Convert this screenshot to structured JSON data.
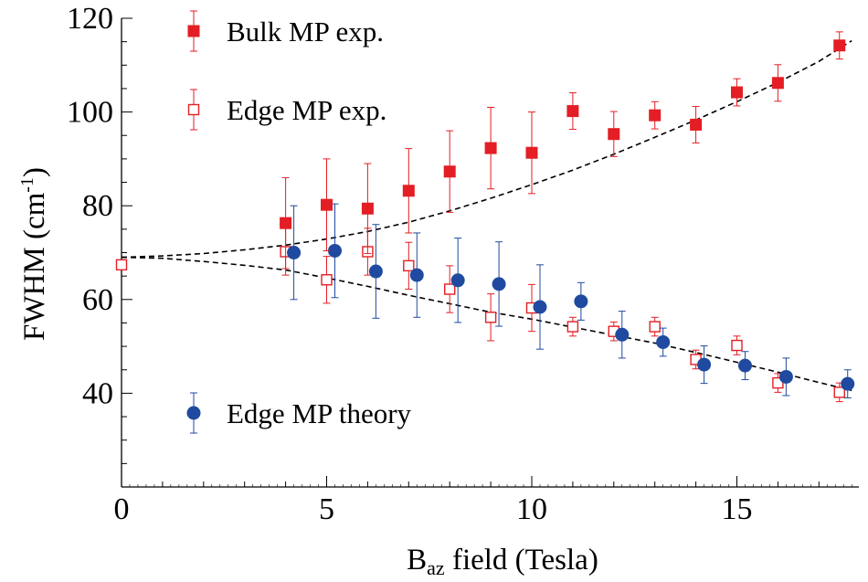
{
  "chart_data": {
    "type": "scatter",
    "title": "",
    "xlabel": {
      "main": "B",
      "sub": "az",
      "rest": " field (Tesla)"
    },
    "ylabel": {
      "main": "FWHM (cm",
      "sup": "-1",
      "rest": ")"
    },
    "xlim": [
      0,
      18
    ],
    "ylim": [
      20,
      120
    ],
    "x_ticks": [
      0,
      5,
      10,
      15
    ],
    "y_ticks": [
      40,
      60,
      80,
      100,
      120
    ],
    "grid": false,
    "colors": {
      "red": "#e31e24",
      "blue": "#1f4aa0",
      "axis": "#000000"
    },
    "legend": [
      {
        "label": "Bulk MP exp.",
        "marker": "filled-square",
        "color": "#e31e24"
      },
      {
        "label": "Edge MP exp.",
        "marker": "open-square",
        "color": "#e31e24"
      },
      {
        "label": "Edge MP theory",
        "marker": "filled-circle",
        "color": "#1f4aa0"
      }
    ],
    "series": [
      {
        "name": "Bulk MP exp.",
        "marker": "filled-square",
        "color": "#e31e24",
        "points": [
          {
            "x": 4,
            "y": 76.3,
            "err": 9.7
          },
          {
            "x": 5,
            "y": 80.2,
            "err": 9.8
          },
          {
            "x": 6,
            "y": 79.4,
            "err": 9.6
          },
          {
            "x": 7,
            "y": 83.2,
            "err": 9.0
          },
          {
            "x": 8,
            "y": 87.3,
            "err": 8.7
          },
          {
            "x": 9,
            "y": 92.3,
            "err": 8.7
          },
          {
            "x": 10,
            "y": 91.3,
            "err": 8.7
          },
          {
            "x": 11,
            "y": 100.2,
            "err": 3.9
          },
          {
            "x": 12,
            "y": 95.3,
            "err": 4.8
          },
          {
            "x": 13,
            "y": 99.3,
            "err": 2.9
          },
          {
            "x": 14,
            "y": 97.3,
            "err": 3.9
          },
          {
            "x": 15,
            "y": 104.2,
            "err": 2.9
          },
          {
            "x": 16,
            "y": 106.2,
            "err": 3.9
          },
          {
            "x": 17.5,
            "y": 114.2,
            "err": 2.9
          }
        ]
      },
      {
        "name": "Edge MP exp.",
        "marker": "open-square",
        "color": "#e31e24",
        "points": [
          {
            "x": 0,
            "y": 67.4,
            "err": 0
          },
          {
            "x": 4,
            "y": 70.2,
            "err": 5.0
          },
          {
            "x": 5,
            "y": 64.2,
            "err": 5.0
          },
          {
            "x": 6,
            "y": 70.2,
            "err": 5.0
          },
          {
            "x": 7,
            "y": 67.2,
            "err": 5.0
          },
          {
            "x": 8,
            "y": 62.2,
            "err": 5.0
          },
          {
            "x": 9,
            "y": 56.2,
            "err": 5.0
          },
          {
            "x": 10,
            "y": 58.2,
            "err": 5.0
          },
          {
            "x": 11,
            "y": 54.2,
            "err": 2.0
          },
          {
            "x": 12,
            "y": 53.2,
            "err": 2.0
          },
          {
            "x": 13,
            "y": 54.2,
            "err": 2.0
          },
          {
            "x": 14,
            "y": 47.2,
            "err": 2.0
          },
          {
            "x": 15,
            "y": 50.2,
            "err": 2.0
          },
          {
            "x": 16,
            "y": 42.2,
            "err": 2.0
          },
          {
            "x": 17.5,
            "y": 40.2,
            "err": 2.0
          }
        ]
      },
      {
        "name": "Edge MP theory",
        "marker": "filled-circle",
        "color": "#1f4aa0",
        "points": [
          {
            "x": 4.2,
            "y": 70.0,
            "err": 10.0
          },
          {
            "x": 5.2,
            "y": 70.4,
            "err": 10.0
          },
          {
            "x": 6.2,
            "y": 66.0,
            "err": 10.0
          },
          {
            "x": 7.2,
            "y": 65.2,
            "err": 9.0
          },
          {
            "x": 8.2,
            "y": 64.1,
            "err": 9.0
          },
          {
            "x": 9.2,
            "y": 63.3,
            "err": 9.0
          },
          {
            "x": 10.2,
            "y": 58.4,
            "err": 9.0
          },
          {
            "x": 11.2,
            "y": 59.6,
            "err": 4.0
          },
          {
            "x": 12.2,
            "y": 52.5,
            "err": 5.0
          },
          {
            "x": 13.2,
            "y": 50.9,
            "err": 3.0
          },
          {
            "x": 14.2,
            "y": 46.1,
            "err": 4.0
          },
          {
            "x": 15.2,
            "y": 45.9,
            "err": 3.0
          },
          {
            "x": 16.2,
            "y": 43.5,
            "err": 4.0
          },
          {
            "x": 17.7,
            "y": 42.0,
            "err": 3.0
          }
        ]
      }
    ],
    "fit_curves": [
      {
        "name": "bulk-fit",
        "style": "dashed",
        "x": [
          0,
          1,
          2,
          3,
          4,
          5,
          6,
          7,
          8,
          9,
          10,
          11,
          12,
          13,
          14,
          15,
          16,
          17,
          17.8
        ],
        "y": [
          69.0,
          69.3,
          69.8,
          70.6,
          71.6,
          72.9,
          74.5,
          76.5,
          78.9,
          81.6,
          84.5,
          87.6,
          91.0,
          94.6,
          98.3,
          102.2,
          106.3,
          110.8,
          115.2
        ]
      },
      {
        "name": "edge-fit",
        "style": "dashed",
        "x": [
          0,
          1,
          2,
          3,
          4,
          5,
          6,
          7,
          8,
          9,
          10,
          11,
          12,
          13,
          14,
          15,
          16,
          17,
          17.8
        ],
        "y": [
          69.0,
          68.8,
          68.1,
          67.3,
          66.3,
          64.6,
          62.8,
          60.9,
          59.1,
          57.3,
          55.8,
          54.1,
          52.4,
          50.7,
          48.7,
          46.6,
          44.5,
          42.3,
          40.6
        ]
      }
    ]
  }
}
